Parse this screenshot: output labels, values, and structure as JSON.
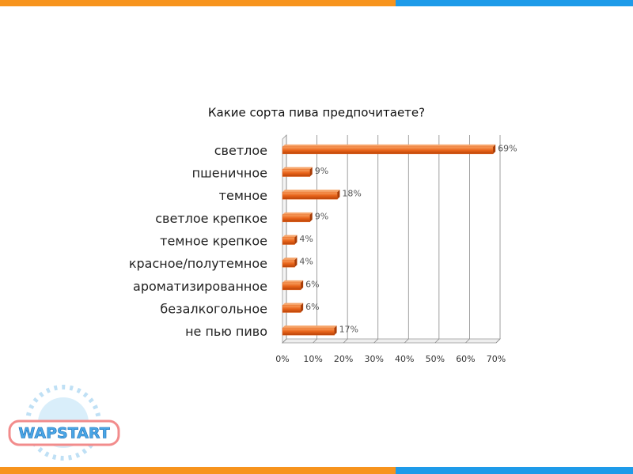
{
  "chart_data": {
    "type": "bar",
    "orientation": "horizontal",
    "title": "Какие сорта пива предпочитаете?",
    "categories": [
      "светлое",
      "пшеничное",
      "темное",
      "светлое крепкое",
      "темное крепкое",
      "красное/полутемное",
      "ароматизированное",
      "безалкогольное",
      "не пью пиво"
    ],
    "values": [
      69,
      9,
      18,
      9,
      4,
      4,
      6,
      6,
      17
    ],
    "value_labels": [
      "69%",
      "9%",
      "18%",
      "9%",
      "4%",
      "4%",
      "6%",
      "6%",
      "17%"
    ],
    "color": "#e8641a",
    "xlim": [
      0,
      70
    ],
    "xticks": [
      {
        "value": 0,
        "label": "0%"
      },
      {
        "value": 10,
        "label": "10%"
      },
      {
        "value": 20,
        "label": "20%"
      },
      {
        "value": 30,
        "label": "30%"
      },
      {
        "value": 40,
        "label": "40%"
      },
      {
        "value": 50,
        "label": "50%"
      },
      {
        "value": 60,
        "label": "60%"
      },
      {
        "value": 70,
        "label": "70%"
      }
    ],
    "grid": true
  },
  "logo": "WAPSTART"
}
